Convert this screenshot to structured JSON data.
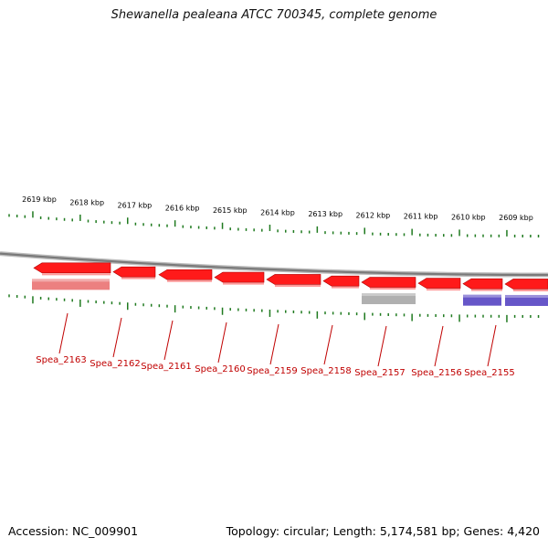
{
  "title": "Shewanella pealeana ATCC 700345, complete genome",
  "footer": {
    "accession": "Accession: NC_009901",
    "summary": "Topology: circular; Length: 5,174,581 bp; Genes: 4,420"
  },
  "colors": {
    "backbone": "#7a7a7a",
    "tick": "#1f7a1f",
    "gene_red": "#ff1a1a",
    "gene_pink": "#ec8080",
    "gene_gray": "#b0b0b0",
    "gene_purple": "#6656c8",
    "label": "#c00000"
  },
  "scale_labels": [
    "2619 kbp",
    "2618 kbp",
    "2617 kbp",
    "2616 kbp",
    "2615 kbp",
    "2614 kbp",
    "2613 kbp",
    "2612 kbp",
    "2611 kbp",
    "2610 kbp",
    "2609 kbp"
  ],
  "genes": [
    {
      "name": "Spea_2163",
      "strand": "-",
      "color": "red",
      "extra": "pink"
    },
    {
      "name": "Spea_2162",
      "strand": "-",
      "color": "red"
    },
    {
      "name": "Spea_2161",
      "strand": "-",
      "color": "red"
    },
    {
      "name": "Spea_2160",
      "strand": "-",
      "color": "red"
    },
    {
      "name": "Spea_2159",
      "strand": "-",
      "color": "red"
    },
    {
      "name": "Spea_2158",
      "strand": "-",
      "color": "red"
    },
    {
      "name": "Spea_2157",
      "strand": "-",
      "color": "red",
      "extra": "gray"
    },
    {
      "name": "Spea_2156",
      "strand": "-",
      "color": "red"
    },
    {
      "name": "Spea_2155",
      "strand": "-",
      "color": "red",
      "extra": "purple"
    },
    {
      "name": "",
      "strand": "-",
      "color": "red",
      "extra": "purple"
    }
  ]
}
